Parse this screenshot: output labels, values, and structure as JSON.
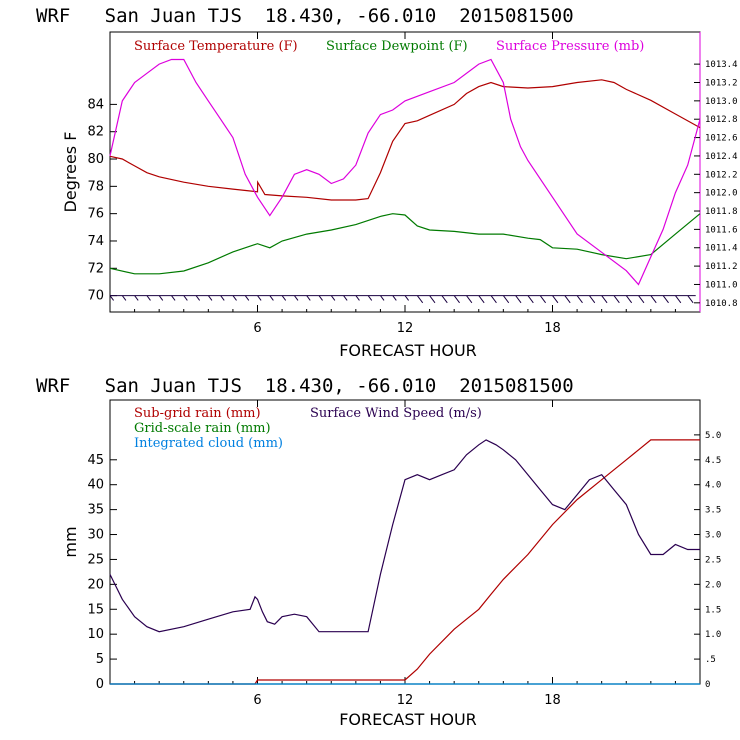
{
  "chart_data": [
    {
      "type": "line",
      "title": "WRF   San Juan TJS  18.430, -66.010  2015081500",
      "xlabel": "FORECAST HOUR",
      "ylabel": "Degrees F",
      "xlim": [
        0,
        24
      ],
      "ylim": [
        68.8,
        89.3
      ],
      "y2lim": [
        1010.7,
        1013.75
      ],
      "x_ticks": [
        "6",
        "12",
        "18"
      ],
      "y_ticks": [
        "70",
        "72",
        "74",
        "76",
        "78",
        "80",
        "82",
        "84"
      ],
      "y2_ticks": [
        "1010.8",
        "1011.0",
        "1011.2",
        "1011.4",
        "1011.6",
        "1011.8",
        "1012.0",
        "1012.2",
        "1012.4",
        "1012.6",
        "1012.8",
        "1013.0",
        "1013.2",
        "1013.4"
      ],
      "series": [
        {
          "name": "Surface Temperature (F)",
          "color": "#b00000",
          "axis": "left",
          "x": [
            0,
            0.5,
            1,
            1.5,
            2,
            3,
            4,
            5,
            6,
            6.01,
            6.3,
            7,
            8,
            9,
            10,
            10.5,
            11,
            11.5,
            12,
            12.5,
            13,
            14,
            14.5,
            15,
            15.5,
            16,
            17,
            18,
            19,
            20,
            20.5,
            21,
            22,
            23,
            24
          ],
          "values": [
            80.2,
            80.0,
            79.5,
            79.0,
            78.7,
            78.3,
            78.0,
            77.8,
            77.6,
            78.3,
            77.4,
            77.3,
            77.2,
            77.0,
            77.0,
            77.1,
            79.0,
            81.3,
            82.6,
            82.8,
            83.2,
            84.0,
            84.8,
            85.3,
            85.6,
            85.3,
            85.2,
            85.3,
            85.6,
            85.8,
            85.6,
            85.1,
            84.3,
            83.3,
            82.3
          ]
        },
        {
          "name": "Surface Dewpoint (F)",
          "color": "#007a00",
          "axis": "left",
          "x": [
            0,
            1,
            2,
            3,
            4,
            5,
            6,
            6.5,
            7,
            8,
            9,
            10,
            11,
            11.5,
            12,
            12.5,
            13,
            14,
            15,
            16,
            17,
            17.5,
            18,
            19,
            20,
            21,
            22,
            23,
            24
          ],
          "values": [
            72.0,
            71.6,
            71.6,
            71.8,
            72.4,
            73.2,
            73.8,
            73.5,
            74.0,
            74.5,
            74.8,
            75.2,
            75.8,
            76.0,
            75.9,
            75.1,
            74.8,
            74.7,
            74.5,
            74.5,
            74.2,
            74.1,
            73.5,
            73.4,
            73.0,
            72.7,
            73.0,
            74.5,
            76.0
          ]
        },
        {
          "name": "Surface Pressure (mb)",
          "color": "#dd00dd",
          "axis": "right",
          "x": [
            0,
            0.5,
            1,
            1.5,
            2,
            2.5,
            3,
            3.5,
            4,
            4.5,
            5,
            5.5,
            6,
            6.5,
            7,
            7.5,
            8,
            8.5,
            9,
            9.5,
            10,
            10.5,
            11,
            11.5,
            12,
            13,
            14,
            15,
            15.5,
            16,
            16.3,
            16.7,
            17,
            18,
            19,
            20,
            21,
            21.5,
            22,
            22.5,
            23,
            23.5,
            24
          ],
          "values": [
            1012.4,
            1013.0,
            1013.2,
            1013.3,
            1013.4,
            1013.45,
            1013.45,
            1013.2,
            1013.0,
            1012.8,
            1012.6,
            1012.2,
            1011.95,
            1011.75,
            1011.95,
            1012.2,
            1012.25,
            1012.2,
            1012.1,
            1012.15,
            1012.3,
            1012.65,
            1012.85,
            1012.9,
            1013.0,
            1013.1,
            1013.2,
            1013.4,
            1013.45,
            1013.2,
            1012.8,
            1012.5,
            1012.35,
            1011.95,
            1011.55,
            1011.35,
            1011.15,
            1011.0,
            1011.3,
            1011.6,
            1012.0,
            1012.3,
            1012.8
          ]
        }
      ],
      "barbs": {
        "description": "wind barbs along 70 F line",
        "hours": [
          0,
          0.5,
          1,
          1.5,
          2,
          2.5,
          3,
          3.5,
          4,
          4.5,
          5,
          5.5,
          6,
          6.5,
          7,
          7.5,
          8,
          8.5,
          9,
          9.5,
          10,
          10.5,
          11,
          11.5,
          12,
          12.5,
          13,
          13.5,
          14,
          14.5,
          15,
          15.5,
          16,
          16.5,
          17,
          17.5,
          18,
          18.5,
          19,
          19.5,
          20,
          20.5,
          21,
          21.5,
          22,
          22.5,
          23,
          23.5
        ]
      }
    },
    {
      "type": "line",
      "title": "WRF   San Juan TJS  18.430, -66.010  2015081500",
      "xlabel": "FORECAST HOUR",
      "ylabel": "mm",
      "xlim": [
        0,
        24
      ],
      "ylim": [
        0,
        57
      ],
      "y2lim": [
        0,
        5.7
      ],
      "x_ticks": [
        "6",
        "12",
        "18"
      ],
      "y_ticks": [
        "0",
        "5",
        "10",
        "15",
        "20",
        "25",
        "30",
        "35",
        "40",
        "45"
      ],
      "y2_ticks": [
        "0",
        ".5",
        "1.0",
        "1.5",
        "2.0",
        "2.5",
        "3.0",
        "3.5",
        "4.0",
        "4.5",
        "5.0"
      ],
      "series": [
        {
          "name": "Sub-grid rain (mm)",
          "color": "#b00000",
          "axis": "left",
          "x": [
            0,
            5.9,
            6.0,
            12.0,
            12.5,
            13,
            14,
            14.5,
            15,
            15.5,
            16,
            17,
            18,
            19,
            20,
            21,
            22,
            23,
            24
          ],
          "values": [
            0,
            0,
            0.8,
            0.8,
            3,
            6,
            11,
            13,
            15,
            18,
            21,
            26,
            32,
            37,
            41,
            45,
            49,
            49,
            49
          ]
        },
        {
          "name": "Grid-scale rain (mm)",
          "color": "#007a00",
          "axis": "left",
          "x": [
            0,
            24
          ],
          "values": [
            0,
            0
          ]
        },
        {
          "name": "Integrated cloud (mm)",
          "color": "#0080e0",
          "axis": "left",
          "x": [
            0,
            24
          ],
          "values": [
            0,
            0
          ]
        },
        {
          "name": "Surface Wind Speed (m/s)",
          "color": "#2a0050",
          "axis": "right",
          "x": [
            0,
            0.5,
            1,
            1.5,
            2,
            3,
            4,
            5,
            5.7,
            5.9,
            6,
            6.2,
            6.4,
            6.7,
            7,
            7.5,
            8,
            8.5,
            9,
            9.5,
            10,
            10.5,
            11,
            11.2,
            11.5,
            12,
            12.5,
            13,
            13.5,
            14,
            14.5,
            15,
            15.3,
            15.7,
            16,
            16.5,
            17,
            17.5,
            18,
            18.5,
            19,
            19.5,
            20,
            20.5,
            21,
            21.5,
            22,
            22.5,
            23,
            23.5,
            24
          ],
          "values": [
            2.2,
            1.7,
            1.35,
            1.15,
            1.05,
            1.15,
            1.3,
            1.45,
            1.5,
            1.75,
            1.7,
            1.45,
            1.25,
            1.2,
            1.35,
            1.4,
            1.35,
            1.05,
            1.05,
            1.05,
            1.05,
            1.05,
            2.2,
            2.6,
            3.2,
            4.1,
            4.2,
            4.1,
            4.2,
            4.3,
            4.6,
            4.8,
            4.9,
            4.8,
            4.7,
            4.5,
            4.2,
            3.9,
            3.6,
            3.5,
            3.8,
            4.1,
            4.2,
            3.9,
            3.6,
            3.0,
            2.6,
            2.6,
            2.8,
            2.7,
            2.7
          ]
        }
      ]
    }
  ]
}
